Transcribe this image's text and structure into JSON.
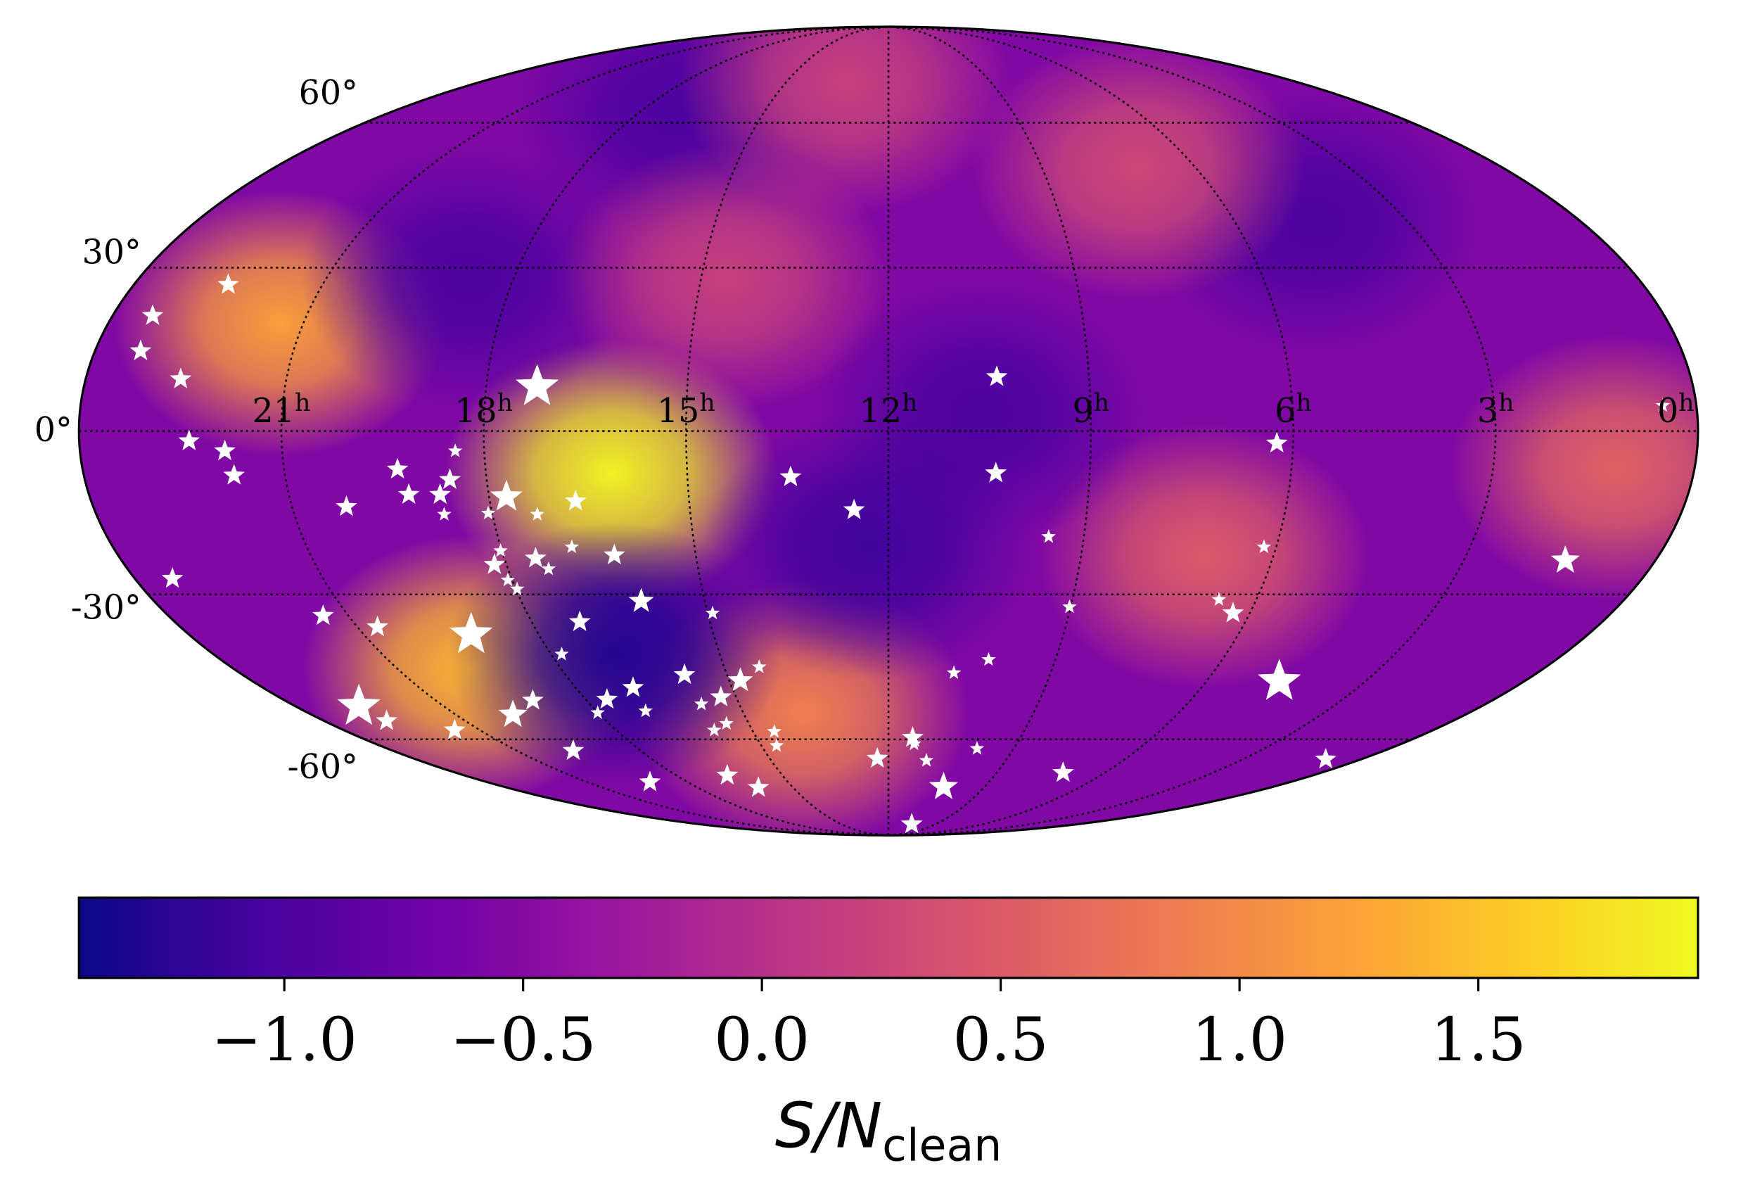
{
  "chart_data": {
    "type": "skymap",
    "projection": "mollweide",
    "colormap": "plasma",
    "clim": [
      -1.43,
      1.96
    ],
    "cticks": [
      {
        "value": -1.0,
        "label": "−1.0"
      },
      {
        "value": -0.5,
        "label": "−0.5"
      },
      {
        "value": 0.0,
        "label": "0.0"
      },
      0.5,
      {
        "value": 1.0,
        "label": "1.0"
      },
      1.5
    ],
    "colorbar_label": {
      "text": "S/N",
      "subscript": "clean"
    },
    "dec_ticks": [
      {
        "value": 60,
        "label": "60°"
      },
      {
        "value": 30,
        "label": "30°"
      },
      {
        "value": 0,
        "label": "0°"
      },
      {
        "value": -30,
        "label": "-30°"
      },
      {
        "value": -60,
        "label": "-60°"
      }
    ],
    "ra_ticks": [
      {
        "value": 21,
        "label": "21",
        "sup": "h"
      },
      {
        "value": 18,
        "label": "18",
        "sup": "h"
      },
      {
        "value": 15,
        "label": "15",
        "sup": "h"
      },
      {
        "value": 12,
        "label": "12",
        "sup": "h"
      },
      {
        "value": 9,
        "label": "9",
        "sup": "h"
      },
      {
        "value": 6,
        "label": "6",
        "sup": "h"
      },
      {
        "value": 3,
        "label": "3",
        "sup": "h"
      },
      {
        "value": 0,
        "label": "0",
        "sup": "h"
      }
    ],
    "grid": true,
    "field": {
      "background": -0.55,
      "ra": [
        16.13,
        21.36,
        19.68,
        13.77,
        1.18,
        7.08,
        16.87,
        10.63,
        17.03,
        4.62,
        7.14,
        13.25,
        18.72,
        12.29,
        14.6
      ],
      "dec": [
        -7.6,
        19.6,
        -44.6,
        -54.0,
        -6.6,
        -22.9,
        -41.8,
        3.4,
        62.5,
        38.7,
        50.0,
        70.0,
        28.0,
        -20.9,
        28.0
      ],
      "values": [
        1.9,
        1.2,
        1.4,
        0.9,
        0.6,
        0.5,
        -1.3,
        -1.0,
        -1.0,
        -1.0,
        0.3,
        0.2,
        -1.0,
        -1.1,
        0.2
      ]
    },
    "stars": {
      "color": "#ffffff",
      "ra": [
        22.5,
        23.38,
        23.31,
        22.58,
        17.24,
        10.38,
        0.5,
        6.24,
        22.37,
        21.85,
        21.76,
        18.43,
        19.31,
        18.55,
        19.2,
        18.73,
        17.74,
        20.18,
        18.73,
        18.06,
        17.32,
        16.71,
        13.46,
        10.4,
        12.52,
        9.54,
        6.19,
        1.41,
        23.4,
        21.42,
        20.66,
        19.16,
        18.19,
        18.02,
        18.07,
        17.98,
        17.51,
        17.36,
        16.9,
        16.27,
        16.04,
        14.92,
        17.81,
        17.19,
        17.58,
        18.01,
        16.9,
        16.99,
        15.79,
        15.76,
        15.3,
        15.48,
        15.84,
        14.79,
        14.36,
        22.72,
        22.67,
        21.56,
        19.81,
        19.07,
        19.63,
        19.13,
        16.56,
        16.09,
        14.53,
        14.64,
        12.28,
        11.45,
        11.4,
        11.03,
        10.28,
        10.52,
        10.79,
        10.2,
        9.88,
        7.16,
        9.02,
        6.61,
        6.28,
        4.62,
        0.9
      ],
      "dec": [
        26.8,
        21.0,
        14.5,
        9.4,
        8.0,
        9.8,
        4.6,
        -2.2,
        -1.8,
        -3.6,
        -8.0,
        -3.6,
        -6.9,
        -8.8,
        -11.5,
        -11.5,
        -11.9,
        -13.7,
        -15.1,
        -14.9,
        -15.1,
        -12.7,
        -8.3,
        -7.6,
        -14.3,
        -19.2,
        -21.1,
        -23.6,
        -27.0,
        -34.1,
        -36.3,
        -37.8,
        -24.4,
        -21.8,
        -27.3,
        -29.0,
        -23.2,
        -25.2,
        -21.1,
        -22.6,
        -31.3,
        -33.6,
        -41.7,
        -35.3,
        -51.1,
        -54.0,
        -48.6,
        -53.6,
        -45.9,
        -52.1,
        -50.6,
        -56.4,
        -57.9,
        -47.1,
        -44.3,
        -52.6,
        -55.8,
        -57.9,
        -54.4,
        -51.3,
        -62.7,
        -70.7,
        -68.9,
        -72.2,
        -58.2,
        -61.5,
        -64.6,
        -59.6,
        -61.1,
        -65.1,
        -72.0,
        -84.0,
        -45.5,
        -42.8,
        -62.2,
        -68.2,
        -32.4,
        -31.0,
        -33.6,
        -47.3,
        -64.8
      ],
      "sizes": [
        3,
        3,
        3,
        3,
        6,
        3,
        2,
        3,
        3,
        3,
        3,
        2,
        3,
        3,
        3,
        3,
        4.5,
        3,
        2,
        2,
        2,
        3,
        3,
        3,
        3,
        2,
        2,
        4,
        3,
        3,
        3,
        6,
        3,
        2,
        2,
        2,
        3,
        2,
        2,
        3,
        3.5,
        2,
        2,
        3,
        3,
        2,
        3,
        2,
        3,
        2,
        3,
        2,
        2,
        3.5,
        2,
        6,
        3,
        3,
        4,
        3,
        3,
        3,
        3,
        3,
        2,
        2,
        3,
        3,
        2,
        2,
        4,
        3,
        2,
        2,
        2,
        3,
        2,
        2,
        3,
        6,
        3
      ]
    }
  }
}
